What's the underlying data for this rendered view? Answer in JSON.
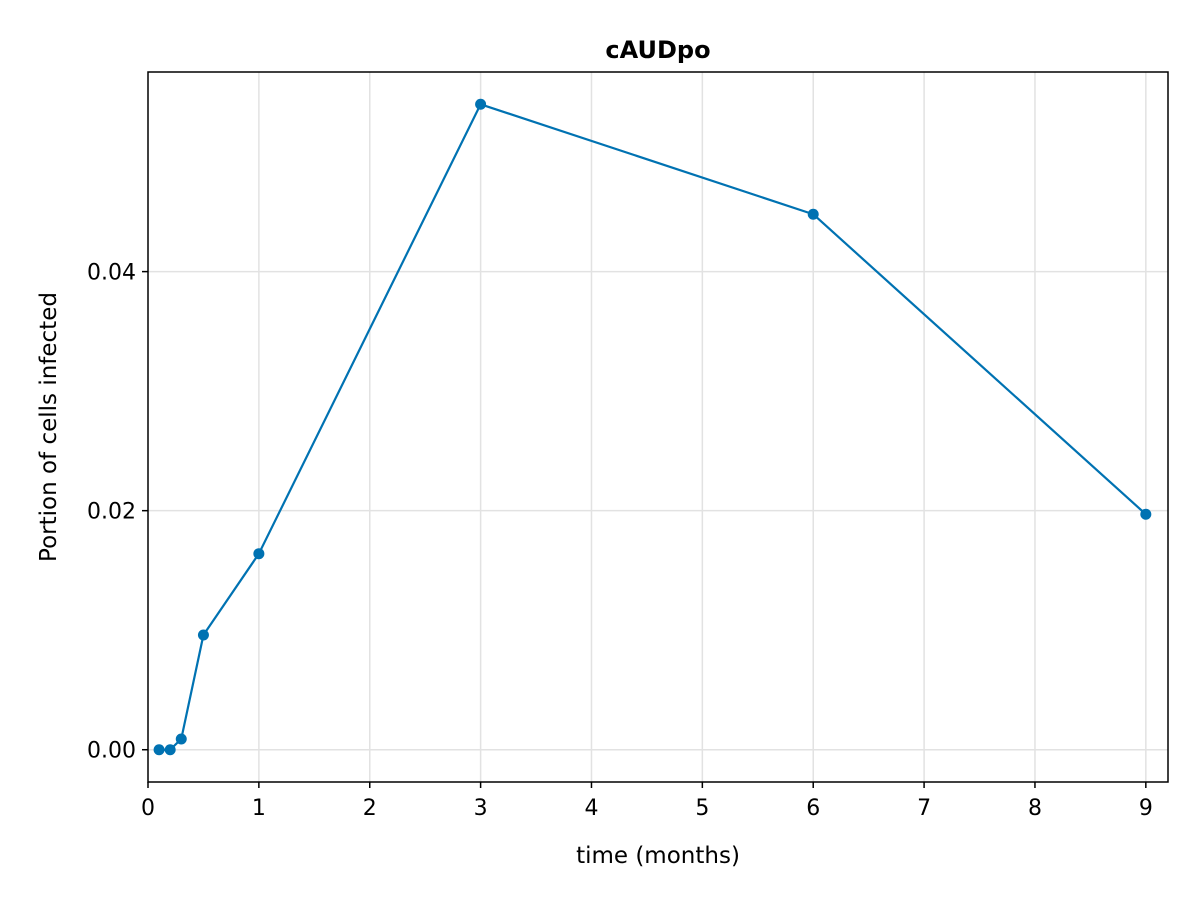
{
  "chart_data": {
    "type": "line",
    "title": "cAUDpo",
    "xlabel": "time (months)",
    "ylabel": "Portion of cells infected",
    "xlim": [
      0,
      9.2
    ],
    "ylim": [
      -0.0027,
      0.0567
    ],
    "xticks": [
      0,
      1,
      2,
      3,
      4,
      5,
      6,
      7,
      8,
      9
    ],
    "xtick_labels": [
      "0",
      "1",
      "2",
      "3",
      "4",
      "5",
      "6",
      "7",
      "8",
      "9"
    ],
    "yticks": [
      0.0,
      0.02,
      0.04
    ],
    "ytick_labels": [
      "0.00",
      "0.02",
      "0.04"
    ],
    "grid": true,
    "series": [
      {
        "color": "#0072b2",
        "marker": "circle",
        "x": [
          0.1,
          0.2,
          0.3,
          0.5,
          1,
          3,
          6,
          9
        ],
        "y": [
          0.0,
          0.0,
          0.0009,
          0.0096,
          0.0164,
          0.054,
          0.0448,
          0.0197
        ]
      }
    ]
  }
}
